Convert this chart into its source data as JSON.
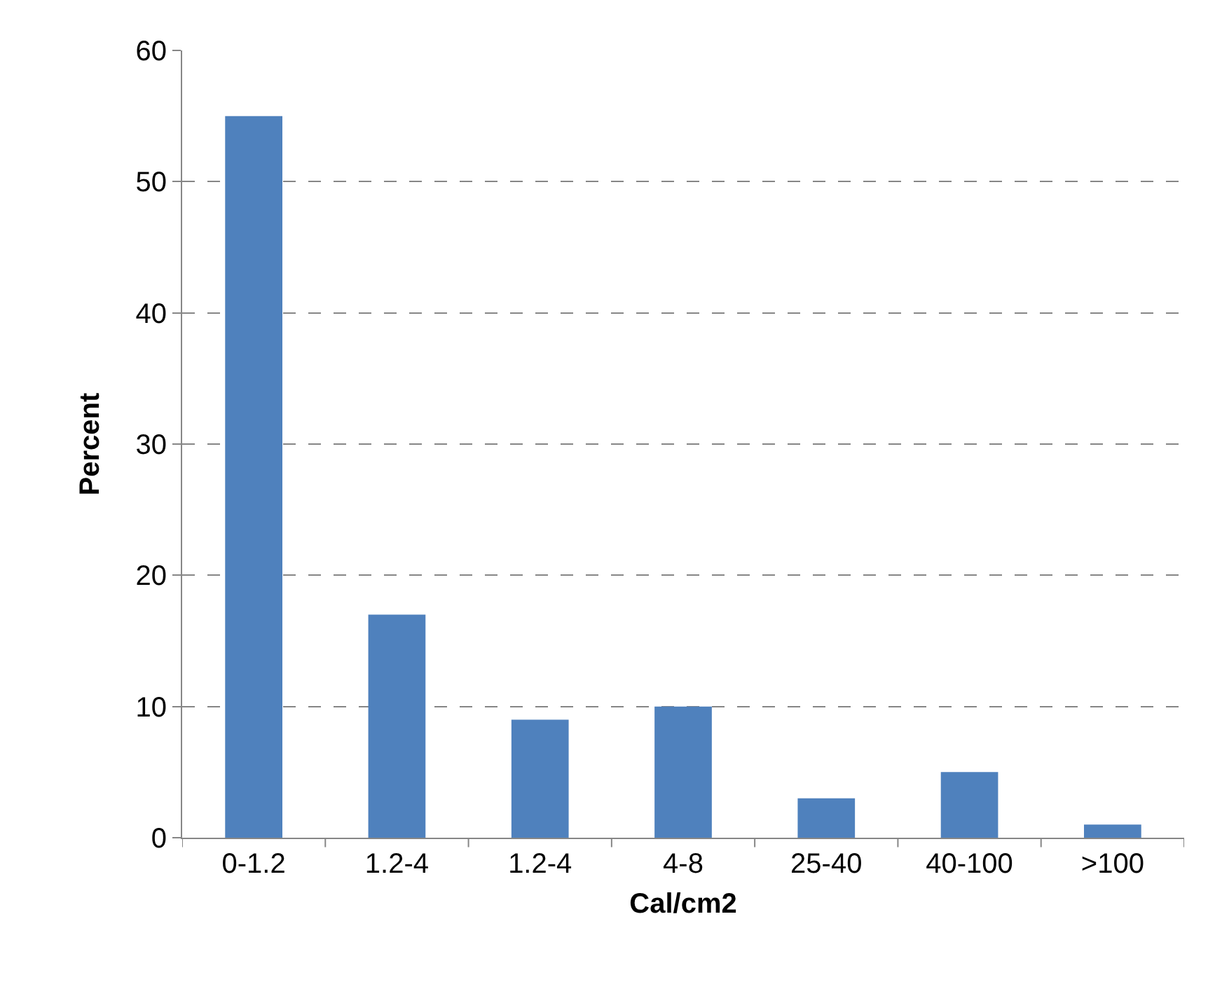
{
  "chart_data": {
    "type": "bar",
    "xlabel": "Cal/cm2",
    "ylabel": "Percent",
    "categories": [
      "0-1.2",
      "1.2-4",
      "1.2-4",
      "4-8",
      "25-40",
      "40-100",
      ">100"
    ],
    "values": [
      55,
      17,
      9,
      10,
      3,
      5,
      1
    ],
    "color": "#4f81bd",
    "ylim": [
      0,
      60
    ],
    "yticks": [
      0,
      10,
      20,
      30,
      40,
      50,
      60
    ],
    "grid": "y",
    "legend": false
  }
}
